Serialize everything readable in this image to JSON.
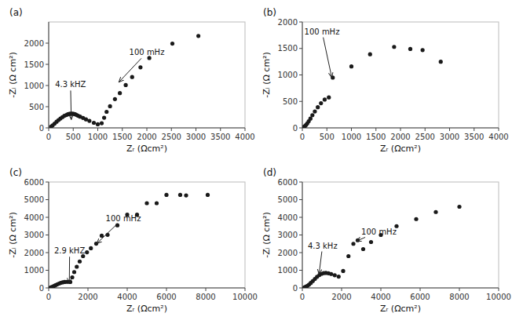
{
  "chart_data": [
    {
      "type": "scatter",
      "title": "(a)",
      "x_label": "Zᵣ (Ωcm²)",
      "y_label": "-Zᵢ (Ω cm²)",
      "color": "#1a1a1a",
      "xlim": [
        0,
        4000
      ],
      "ylim": [
        0,
        2500
      ],
      "xticks": [
        0,
        500,
        1000,
        1500,
        2000,
        2500,
        3000,
        3500,
        4000
      ],
      "yticks": [
        0,
        500,
        1000,
        1500,
        2000
      ],
      "x": [
        50,
        80,
        120,
        160,
        200,
        240,
        280,
        320,
        360,
        390,
        420,
        450,
        480,
        510,
        540,
        570,
        600,
        640,
        700,
        760,
        830,
        920,
        1000,
        1080,
        1130,
        1180,
        1250,
        1350,
        1450,
        1570,
        1700,
        1870,
        2050,
        2520,
        3050
      ],
      "values": [
        30,
        60,
        100,
        145,
        185,
        220,
        255,
        285,
        305,
        320,
        330,
        335,
        335,
        330,
        320,
        305,
        285,
        265,
        235,
        200,
        165,
        120,
        85,
        110,
        240,
        380,
        510,
        680,
        820,
        1010,
        1200,
        1430,
        1650,
        1990,
        2170
      ],
      "annotations": [
        {
          "text": "100 mHz",
          "x": 1430,
          "y": 1080,
          "text_x": 2000,
          "text_y": 1780,
          "align": "center"
        },
        {
          "text": "4.3 kHZ",
          "x": 460,
          "y": 195,
          "text_x": 130,
          "text_y": 1020,
          "align": "left"
        }
      ]
    },
    {
      "type": "scatter",
      "title": "(b)",
      "x_label": "Zᵣ (Ωcm²)",
      "y_label": "-Zᵢ (Ω cm²)",
      "color": "#1a1a1a",
      "xlim": [
        0,
        4000
      ],
      "ylim": [
        0,
        2000
      ],
      "xticks": [
        0,
        500,
        1000,
        1500,
        2000,
        2500,
        3000,
        3500,
        4000
      ],
      "yticks": [
        0,
        500,
        1000,
        1500,
        2000
      ],
      "x": [
        20,
        35,
        55,
        75,
        100,
        130,
        165,
        205,
        255,
        315,
        380,
        455,
        540,
        620,
        1000,
        1380,
        1870,
        2200,
        2450,
        2820
      ],
      "values": [
        10,
        20,
        35,
        55,
        85,
        125,
        175,
        240,
        310,
        390,
        465,
        535,
        575,
        950,
        1160,
        1390,
        1530,
        1490,
        1470,
        1250
      ],
      "annotations": [
        {
          "text": "100 mHz",
          "x": 600,
          "y": 950,
          "text_x": 400,
          "text_y": 1820,
          "align": "center"
        }
      ]
    },
    {
      "type": "scatter",
      "title": "(c)",
      "x_label": "Zᵣ (Ωcm²)",
      "y_label": "-Zᵢ (Ω cm²)",
      "color": "#1a1a1a",
      "xlim": [
        0,
        10000
      ],
      "ylim": [
        0,
        6000
      ],
      "xticks": [
        0,
        2000,
        4000,
        6000,
        8000,
        10000
      ],
      "yticks": [
        0,
        1000,
        2000,
        3000,
        4000,
        5000,
        6000
      ],
      "x": [
        100,
        180,
        260,
        340,
        430,
        520,
        610,
        710,
        810,
        910,
        1010,
        1100,
        1200,
        1300,
        1430,
        1580,
        1750,
        1950,
        2150,
        2420,
        2700,
        3000,
        3500,
        4000,
        4500,
        5000,
        5500,
        6000,
        6700,
        7000,
        8100
      ],
      "values": [
        30,
        65,
        105,
        150,
        200,
        245,
        285,
        315,
        335,
        345,
        345,
        335,
        600,
        900,
        1200,
        1500,
        1800,
        2020,
        2250,
        2510,
        2960,
        3010,
        3550,
        4150,
        4150,
        4800,
        4800,
        5270,
        5270,
        5240,
        5270
      ],
      "annotations": [
        {
          "text": "100 mHz",
          "x": 2450,
          "y": 2520,
          "text_x": 3800,
          "text_y": 3950,
          "align": "center"
        },
        {
          "text": "2.9 kHZ",
          "x": 1050,
          "y": 280,
          "text_x": 280,
          "text_y": 2100,
          "align": "left"
        }
      ]
    },
    {
      "type": "scatter",
      "title": "(d)",
      "x_label": "Zᵣ (Ωcm²)",
      "y_label": "-Zᵢ (Ω cm²)",
      "color": "#1a1a1a",
      "xlim": [
        0,
        10000
      ],
      "ylim": [
        0,
        6000
      ],
      "xticks": [
        0,
        2000,
        4000,
        6000,
        8000,
        10000
      ],
      "yticks": [
        0,
        1000,
        2000,
        3000,
        4000,
        5000,
        6000
      ],
      "x": [
        100,
        180,
        260,
        340,
        430,
        530,
        640,
        750,
        870,
        980,
        1090,
        1200,
        1330,
        1470,
        1650,
        1850,
        2080,
        2350,
        2600,
        2820,
        3100,
        3500,
        4000,
        4800,
        5800,
        6800,
        8000
      ],
      "values": [
        30,
        70,
        120,
        190,
        280,
        390,
        510,
        630,
        730,
        800,
        840,
        850,
        830,
        790,
        720,
        640,
        960,
        1800,
        2500,
        2700,
        2200,
        2600,
        3000,
        3500,
        3900,
        4300,
        4600
      ],
      "annotations": [
        {
          "text": "100 mHz",
          "x": 2750,
          "y": 2650,
          "text_x": 3900,
          "text_y": 3200,
          "align": "center"
        },
        {
          "text": "4.3 kHz",
          "x": 850,
          "y": 780,
          "text_x": 280,
          "text_y": 2400,
          "align": "left"
        }
      ]
    }
  ]
}
